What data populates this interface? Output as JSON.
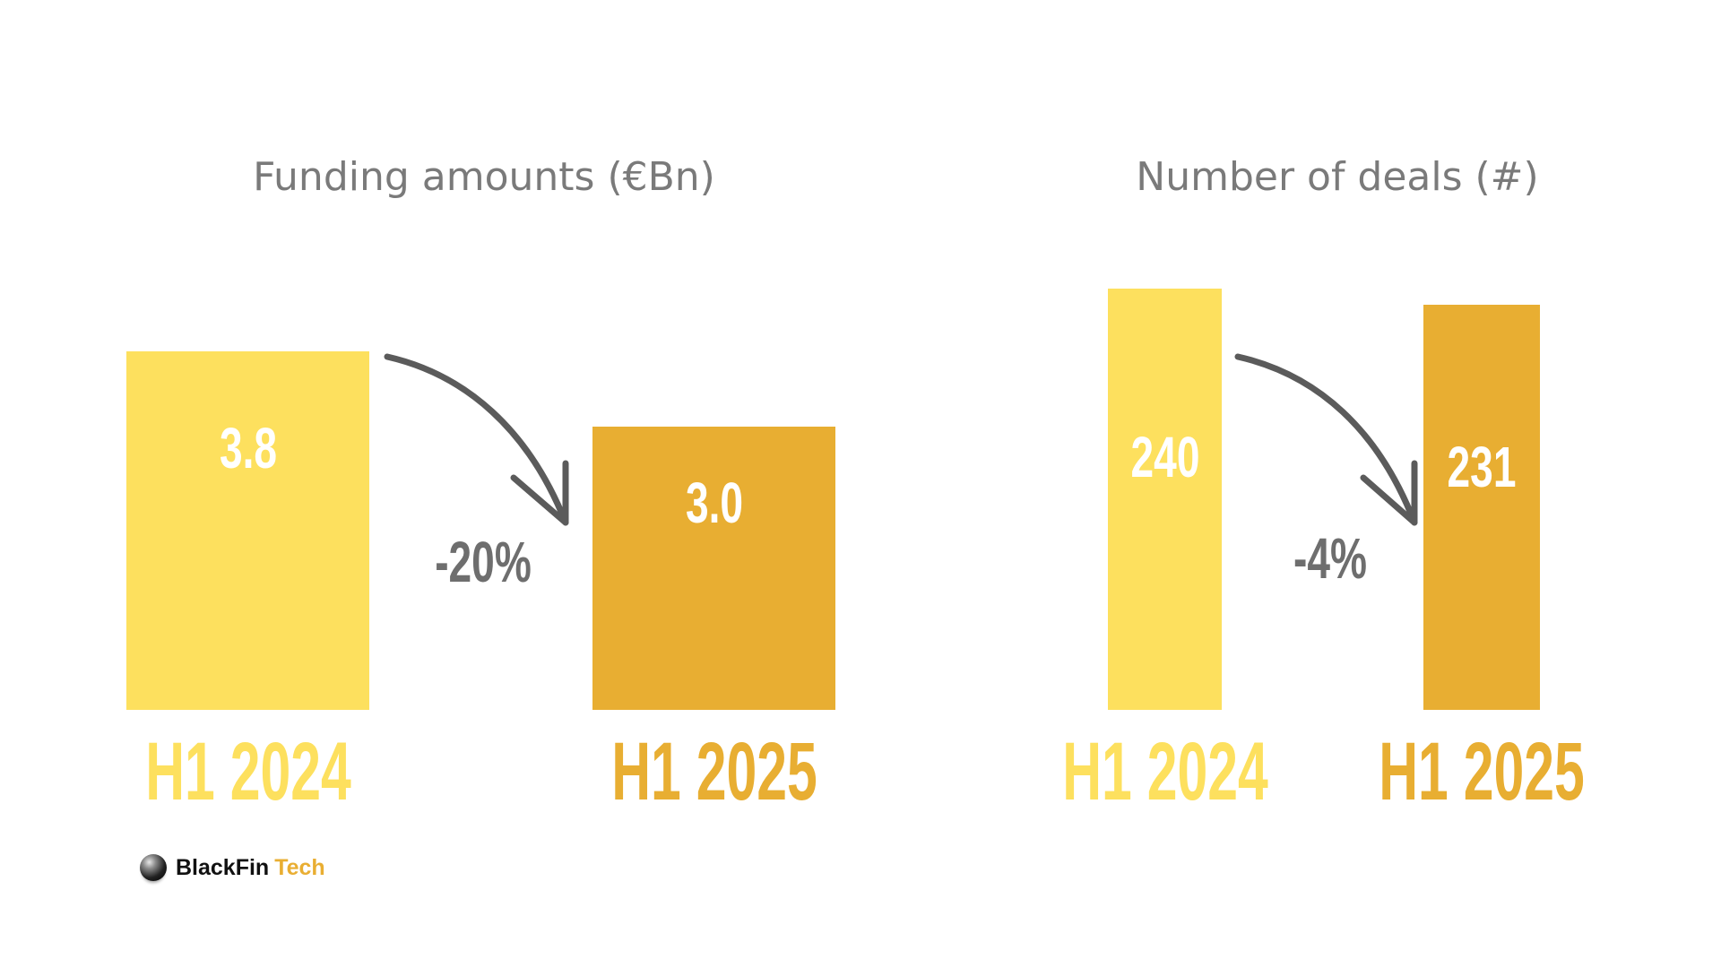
{
  "chart_data": [
    {
      "type": "bar",
      "title": "Funding amounts (€Bn)",
      "categories": [
        "H1 2024",
        "H1 2025"
      ],
      "values": [
        3.8,
        3.0
      ],
      "value_labels": [
        "3.8",
        "3.0"
      ],
      "change_label": "-20%",
      "colors": [
        "#fde05e",
        "#e8ae32"
      ]
    },
    {
      "type": "bar",
      "title": "Number of deals (#)",
      "categories": [
        "H1 2024",
        "H1 2025"
      ],
      "values": [
        240,
        231
      ],
      "value_labels": [
        "240",
        "231"
      ],
      "change_label": "-4%",
      "colors": [
        "#fde05e",
        "#e8ae32"
      ]
    }
  ],
  "logo": {
    "word1": "BlackFin",
    "word2": "Tech",
    "icon": "sphere-logo-icon"
  },
  "arrow_color": "#5b5b5b",
  "arrow_icon": "curved-down-arrow-icon"
}
